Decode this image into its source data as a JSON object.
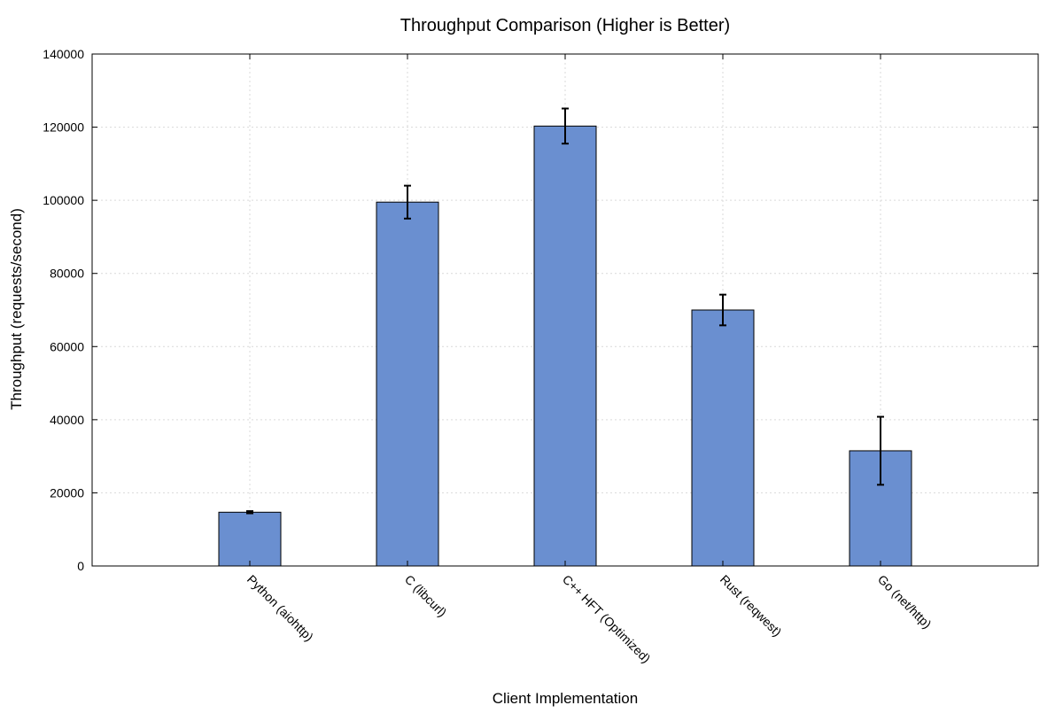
{
  "chart_data": {
    "type": "bar",
    "title": "Throughput Comparison (Higher is Better)",
    "xlabel": "Client Implementation",
    "ylabel": "Throughput (requests/second)",
    "categories": [
      "Python (aiohttp)",
      "C (libcurl)",
      "C++ HFT (Optimized)",
      "Rust (reqwest)",
      "Go (net/http)"
    ],
    "values": [
      14700,
      99500,
      120300,
      70000,
      31500
    ],
    "error": [
      300,
      4500,
      4800,
      4200,
      9300
    ],
    "ylim": [
      0,
      140000
    ],
    "yticks": [
      0,
      20000,
      40000,
      60000,
      80000,
      100000,
      120000,
      140000
    ],
    "ytick_labels": [
      "0",
      "20000",
      "40000",
      "60000",
      "80000",
      "100000",
      "120000",
      "140000"
    ],
    "grid": true,
    "bar_color": "#6a8fd0",
    "bar_edge_color": "#000000",
    "grid_color": "#d9d9d9"
  }
}
